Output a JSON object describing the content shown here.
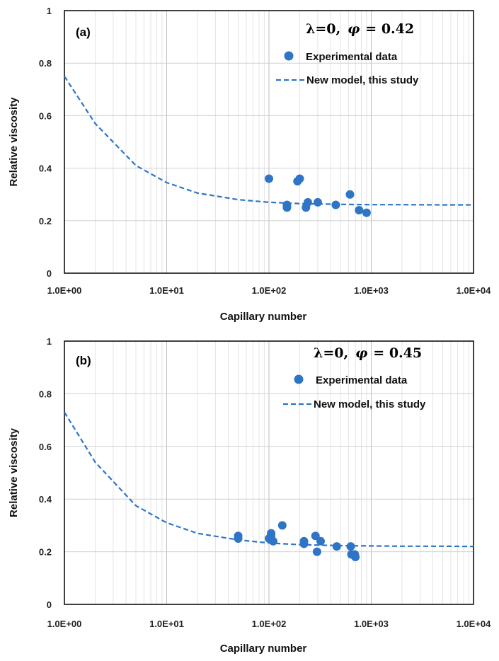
{
  "chart_data": [
    {
      "type": "scatter",
      "panel_label": "(a)",
      "param_lambda": "λ=0,",
      "param_phi_symbol": "φ",
      "param_phi_value": "= 0.42",
      "xlabel": "Capillary number",
      "ylabel": "Relative viscosity",
      "xscale": "log",
      "xlim": [
        1,
        10000
      ],
      "ylim": [
        0,
        1
      ],
      "x_tick_values": [
        1,
        10,
        100,
        1000,
        10000
      ],
      "x_tick_labels": [
        "1.0E+00",
        "1.0E+01",
        "1.0E+02",
        "1.0E+03",
        "1.0E+04"
      ],
      "y_tick_values": [
        0,
        0.2,
        0.4,
        0.6,
        0.8,
        1
      ],
      "y_tick_labels": [
        "0",
        "0.2",
        "0.4",
        "0.6",
        "0.8",
        "1"
      ],
      "legend": {
        "position": "top-right",
        "entries": [
          "Experimental data",
          "New model, this study"
        ]
      },
      "series": [
        {
          "name": "Experimental data",
          "kind": "points",
          "color": "#2e75c6",
          "x": [
            100,
            150,
            150,
            190,
            200,
            230,
            240,
            300,
            450,
            620,
            760,
            900
          ],
          "y": [
            0.36,
            0.26,
            0.25,
            0.35,
            0.36,
            0.25,
            0.27,
            0.27,
            0.26,
            0.3,
            0.24,
            0.23
          ]
        },
        {
          "name": "New model, this study",
          "kind": "dashed-line",
          "color": "#2e75c6",
          "x": [
            1,
            2,
            5,
            10,
            20,
            50,
            100,
            200,
            500,
            1000,
            2000,
            5000,
            10000
          ],
          "y": [
            0.75,
            0.57,
            0.41,
            0.345,
            0.305,
            0.28,
            0.27,
            0.265,
            0.262,
            0.261,
            0.261,
            0.26,
            0.26
          ]
        }
      ]
    },
    {
      "type": "scatter",
      "panel_label": "(b)",
      "param_lambda": "λ=0,",
      "param_phi_symbol": "φ",
      "param_phi_value": "= 0.45",
      "xlabel": "Capillary number",
      "ylabel": "Relative viscosity",
      "xscale": "log",
      "xlim": [
        1,
        10000
      ],
      "ylim": [
        0,
        1
      ],
      "x_tick_values": [
        1,
        10,
        100,
        1000,
        10000
      ],
      "x_tick_labels": [
        "1.0E+00",
        "1.0E+01",
        "1.0E+02",
        "1.0E+03",
        "1.0E+04"
      ],
      "y_tick_values": [
        0,
        0.2,
        0.4,
        0.6,
        0.8,
        1
      ],
      "y_tick_labels": [
        "0",
        "0.2",
        "0.4",
        "0.6",
        "0.8",
        "1"
      ],
      "legend": {
        "position": "top-right",
        "entries": [
          "Experimental data",
          "New model, this study"
        ]
      },
      "series": [
        {
          "name": "Experimental data",
          "kind": "points",
          "color": "#2e75c6",
          "x": [
            50,
            50,
            100,
            105,
            105,
            110,
            135,
            220,
            220,
            285,
            295,
            320,
            460,
            630,
            640,
            690,
            700
          ],
          "y": [
            0.26,
            0.25,
            0.25,
            0.27,
            0.26,
            0.24,
            0.3,
            0.24,
            0.23,
            0.26,
            0.2,
            0.24,
            0.22,
            0.22,
            0.19,
            0.19,
            0.18
          ]
        },
        {
          "name": "New model, this study",
          "kind": "dashed-line",
          "color": "#2e75c6",
          "x": [
            1,
            2,
            5,
            10,
            20,
            50,
            100,
            200,
            500,
            1000,
            2000,
            5000,
            10000
          ],
          "y": [
            0.73,
            0.54,
            0.375,
            0.31,
            0.27,
            0.245,
            0.233,
            0.227,
            0.223,
            0.222,
            0.221,
            0.221,
            0.22
          ]
        }
      ]
    }
  ]
}
